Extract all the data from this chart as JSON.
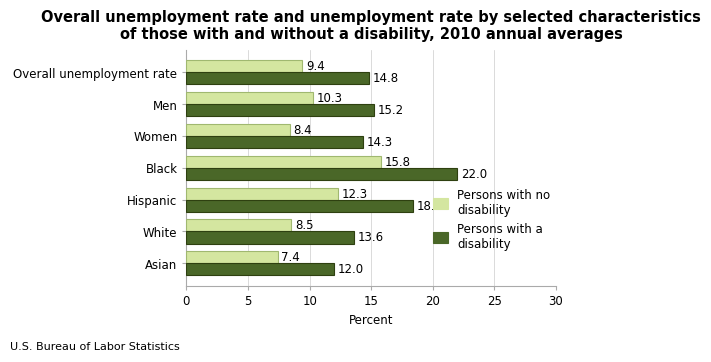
{
  "title": "Overall unemployment rate and unemployment rate by selected characteristics\nof those with and without a disability, 2010 annual averages",
  "categories": [
    "Overall unemployment rate",
    "Men",
    "Women",
    "Black",
    "Hispanic",
    "White",
    "Asian"
  ],
  "no_disability": [
    9.4,
    10.3,
    8.4,
    15.8,
    12.3,
    8.5,
    7.4
  ],
  "with_disability": [
    14.8,
    15.2,
    14.3,
    22.0,
    18.4,
    13.6,
    12.0
  ],
  "color_no_disability": "#d4e6a0",
  "color_with_disability": "#4a6728",
  "color_no_edge": "#a0b870",
  "color_with_edge": "#2e4010",
  "xlabel": "Percent",
  "xlim": [
    0,
    30
  ],
  "xticks": [
    0,
    5,
    10,
    15,
    20,
    25,
    30
  ],
  "legend_labels": [
    "Persons with no\ndisability",
    "Persons with a\ndisability"
  ],
  "footer": "U.S. Bureau of Labor Statistics",
  "bar_height": 0.38,
  "title_fontsize": 10.5,
  "tick_fontsize": 8.5,
  "label_fontsize": 8.5,
  "value_fontsize": 8.5,
  "footer_fontsize": 8
}
